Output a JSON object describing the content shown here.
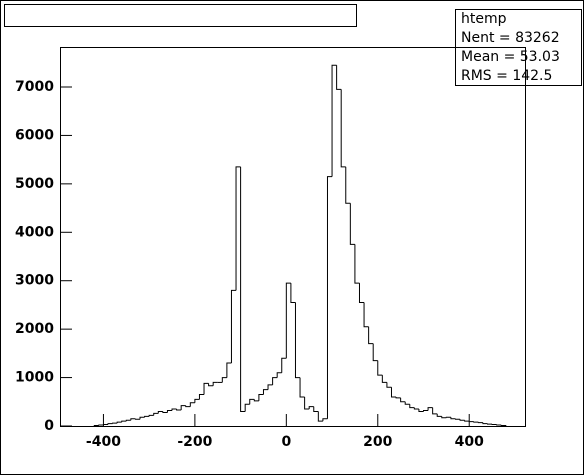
{
  "chart_data": {
    "type": "histogram",
    "stats_title": "htemp",
    "stats": [
      "Nent = 83262",
      "Mean  =  53.03",
      "RMS   =  142.5"
    ],
    "bins": [
      -420,
      -410,
      -400,
      -390,
      -380,
      -370,
      -360,
      -350,
      -340,
      -330,
      -320,
      -310,
      -300,
      -290,
      -280,
      -270,
      -260,
      -250,
      -240,
      -230,
      -220,
      -210,
      -200,
      -190,
      -180,
      -170,
      -160,
      -150,
      -140,
      -130,
      -120,
      -110,
      -100,
      -90,
      -80,
      -70,
      -60,
      -50,
      -40,
      -30,
      -20,
      -10,
      0,
      10,
      20,
      30,
      40,
      50,
      60,
      70,
      80,
      90,
      100,
      110,
      120,
      130,
      140,
      150,
      160,
      170,
      180,
      190,
      200,
      210,
      220,
      230,
      240,
      250,
      260,
      270,
      280,
      290,
      300,
      310,
      320,
      330,
      340,
      350,
      360,
      370,
      380,
      390,
      400,
      410,
      420,
      430,
      440,
      450,
      460,
      470,
      480
    ],
    "counts": [
      10,
      20,
      30,
      50,
      60,
      80,
      100,
      120,
      150,
      140,
      180,
      200,
      220,
      260,
      300,
      280,
      320,
      350,
      330,
      420,
      400,
      480,
      550,
      650,
      880,
      830,
      900,
      900,
      1000,
      1300,
      2800,
      5350,
      300,
      450,
      550,
      520,
      650,
      750,
      850,
      1000,
      1100,
      1400,
      2950,
      2550,
      1000,
      600,
      350,
      400,
      300,
      100,
      150,
      5150,
      7450,
      6950,
      5350,
      4600,
      3750,
      2950,
      2550,
      2050,
      1700,
      1350,
      1050,
      900,
      800,
      600,
      580,
      500,
      450,
      380,
      350,
      300,
      320,
      380,
      250,
      200,
      170,
      180,
      150,
      140,
      120,
      100,
      90,
      80,
      70,
      50,
      40,
      30,
      20,
      10
    ],
    "color": "#000000",
    "xlim": [
      -495,
      522
    ],
    "ylim": [
      0,
      7826
    ],
    "xticks": [
      -400,
      -200,
      0,
      200,
      400
    ],
    "yticks": [
      0,
      1000,
      2000,
      3000,
      4000,
      5000,
      6000,
      7000
    ]
  }
}
